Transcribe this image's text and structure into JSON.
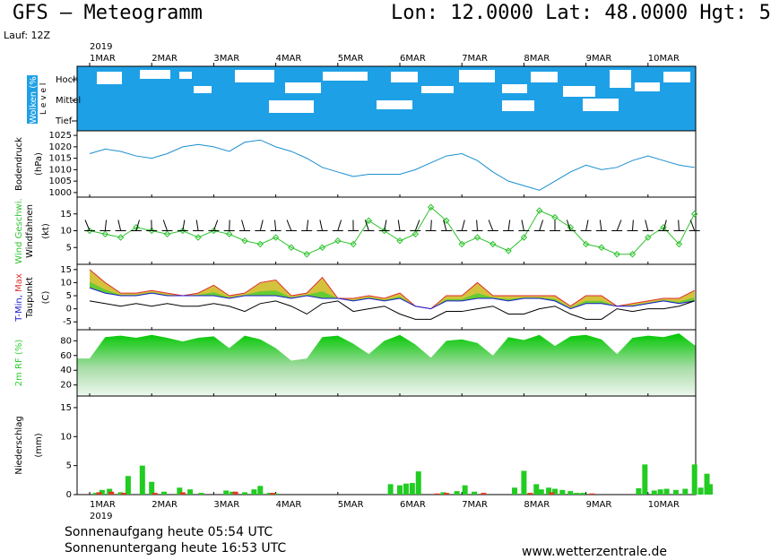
{
  "header": {
    "title": "GFS – Meteogramm",
    "coords": "Lon: 12.0000  Lat: 48.0000  Hgt: 5",
    "run": "Lauf: 12Z"
  },
  "footer": {
    "sunrise": "Sonnenaufgang heute 05:54 UTC",
    "sunset": "Sonnenuntergang heute 16:53 UTC",
    "site": "www.wetterzentrale.de"
  },
  "colors": {
    "cloud": "#1ea0e6",
    "pressure": "#1a8fd0",
    "wind": "#2ec42e",
    "tmax": "#e03030",
    "tmin": "#1a1ad0",
    "humidity": "#2fcf2f",
    "precip_green": "#22cc22",
    "precip_red": "#e03a20",
    "warm_band": "#e8c040"
  },
  "chart_data": [
    {
      "type": "area",
      "panel": "clouds",
      "label_side": "Wolken (%)",
      "label_levels": "L e v e l",
      "levels": [
        "Hoch",
        "Mittel",
        "Tief"
      ],
      "x_labels": [
        "1MAR",
        "2MAR",
        "3MAR",
        "4MAR",
        "5MAR",
        "6MAR",
        "7MAR",
        "8MAR",
        "9MAR",
        "10MAR"
      ],
      "year_label": "2019"
    },
    {
      "type": "line",
      "panel": "pressure",
      "ylabel": "Bodendruck",
      "unit": "(hPa)",
      "yticks": [
        1000,
        1005,
        1010,
        1015,
        1020,
        1025
      ],
      "ylim": [
        998,
        1027
      ],
      "x_days": [
        0,
        0.25,
        0.5,
        0.75,
        1,
        1.25,
        1.5,
        1.75,
        2,
        2.25,
        2.5,
        2.75,
        3,
        3.25,
        3.5,
        3.75,
        4,
        4.25,
        4.5,
        4.75,
        5,
        5.25,
        5.5,
        5.75,
        6,
        6.25,
        6.5,
        6.75,
        7,
        7.25,
        7.5,
        7.75,
        8,
        8.25,
        8.5,
        8.75,
        9,
        9.25,
        9.5,
        9.75
      ],
      "values": [
        1017,
        1019,
        1018,
        1016,
        1015,
        1017,
        1020,
        1021,
        1020,
        1018,
        1022,
        1023,
        1020,
        1018,
        1015,
        1011,
        1009,
        1007,
        1008,
        1008,
        1008,
        1010,
        1013,
        1016,
        1017,
        1014,
        1009,
        1005,
        1003,
        1001,
        1005,
        1009,
        1012,
        1010,
        1011,
        1014,
        1016,
        1014,
        1012,
        1011
      ]
    },
    {
      "type": "line",
      "panel": "wind",
      "ylabel": "Wind Geschwi.",
      "ylabel2": "Windfahnen",
      "unit": "(kt)",
      "yticks": [
        5,
        10,
        15
      ],
      "ylim": [
        0,
        20
      ],
      "x_days": [
        0,
        0.25,
        0.5,
        0.75,
        1,
        1.25,
        1.5,
        1.75,
        2,
        2.25,
        2.5,
        2.75,
        3,
        3.25,
        3.5,
        3.75,
        4,
        4.25,
        4.5,
        4.75,
        5,
        5.25,
        5.5,
        5.75,
        6,
        6.25,
        6.5,
        6.75,
        7,
        7.25,
        7.5,
        7.75,
        8,
        8.25,
        8.5,
        8.75,
        9,
        9.25,
        9.5,
        9.75
      ],
      "values": [
        10,
        9,
        8,
        11,
        10,
        9,
        10,
        8,
        10,
        9,
        7,
        6,
        8,
        5,
        3,
        5,
        7,
        6,
        13,
        10,
        7,
        9,
        17,
        13,
        6,
        8,
        6,
        4,
        8,
        16,
        14,
        11,
        6,
        5,
        3,
        3,
        8,
        11,
        6,
        15
      ]
    },
    {
      "type": "area",
      "panel": "temperature",
      "ylabel_parts": [
        "T-Min,",
        "Max"
      ],
      "ylabel2": "Taupunkt",
      "unit": "(C)",
      "yticks": [
        -5,
        0,
        5,
        10,
        15
      ],
      "ylim": [
        -8,
        17
      ],
      "x_days": [
        0,
        0.25,
        0.5,
        0.75,
        1,
        1.25,
        1.5,
        1.75,
        2,
        2.25,
        2.5,
        2.75,
        3,
        3.25,
        3.5,
        3.75,
        4,
        4.25,
        4.5,
        4.75,
        5,
        5.25,
        5.5,
        5.75,
        6,
        6.25,
        6.5,
        6.75,
        7,
        7.25,
        7.5,
        7.75,
        8,
        8.25,
        8.5,
        8.75,
        9,
        9.25,
        9.5,
        9.75
      ],
      "tmax": [
        15,
        10,
        6,
        6,
        7,
        6,
        5,
        6,
        9,
        5,
        6,
        10,
        11,
        5,
        6,
        12,
        4,
        4,
        5,
        4,
        6,
        1,
        0,
        5,
        5,
        10,
        5,
        5,
        5,
        5,
        5,
        1,
        5,
        5,
        1,
        2,
        3,
        4,
        4,
        7
      ],
      "tmin": [
        8,
        6,
        5,
        5,
        6,
        5,
        5,
        5,
        5,
        4,
        5,
        5,
        5,
        4,
        5,
        4,
        4,
        3,
        4,
        3,
        4,
        1,
        0,
        3,
        3,
        4,
        4,
        3,
        4,
        4,
        3,
        0,
        2,
        2,
        1,
        1,
        2,
        3,
        2,
        3
      ],
      "dewpoint": [
        3,
        2,
        1,
        2,
        1,
        2,
        1,
        1,
        2,
        1,
        -1,
        2,
        3,
        1,
        -2,
        2,
        3,
        -1,
        0,
        1,
        -2,
        -4,
        -4,
        -1,
        -1,
        0,
        1,
        -2,
        -2,
        0,
        1,
        -2,
        -4,
        -4,
        0,
        -1,
        0,
        0,
        1,
        3
      ]
    },
    {
      "type": "area",
      "panel": "humidity",
      "ylabel": "2m RF (%)",
      "yticks": [
        20,
        40,
        60,
        80
      ],
      "ylim": [
        5,
        95
      ],
      "x_days": [
        0,
        0.25,
        0.5,
        0.75,
        1,
        1.25,
        1.5,
        1.75,
        2,
        2.25,
        2.5,
        2.75,
        3,
        3.25,
        3.5,
        3.75,
        4,
        4.25,
        4.5,
        4.75,
        5,
        5.25,
        5.5,
        5.75,
        6,
        6.25,
        6.5,
        6.75,
        7,
        7.25,
        7.5,
        7.75,
        8,
        8.25,
        8.5,
        8.75,
        9,
        9.25,
        9.5,
        9.75
      ],
      "values": [
        56,
        85,
        87,
        84,
        88,
        84,
        79,
        84,
        86,
        70,
        87,
        82,
        70,
        53,
        56,
        85,
        87,
        76,
        62,
        80,
        88,
        75,
        57,
        80,
        82,
        77,
        60,
        85,
        81,
        88,
        73,
        86,
        88,
        82,
        62,
        84,
        87,
        85,
        90,
        74
      ]
    },
    {
      "type": "bar",
      "panel": "precipitation",
      "ylabel": "Niederschlag",
      "unit": "(mm)",
      "yticks": [
        0,
        5,
        10,
        15
      ],
      "ylim": [
        0,
        17
      ],
      "x_days": [
        0.1,
        0.2,
        0.32,
        0.5,
        0.62,
        0.85,
        1.0,
        1.2,
        1.45,
        1.62,
        1.8,
        2.2,
        2.3,
        2.5,
        2.65,
        2.75,
        2.9,
        3.0,
        4.85,
        5.0,
        5.1,
        5.2,
        5.3,
        5.7,
        5.92,
        6.05,
        6.2,
        6.85,
        7.0,
        7.2,
        7.28,
        7.4,
        7.5,
        7.62,
        7.75,
        7.85,
        7.95,
        8.85,
        8.95,
        9.1,
        9.2,
        9.3,
        9.45,
        9.6,
        9.75,
        9.85,
        9.95,
        10.0
      ],
      "values": [
        0.3,
        0.8,
        1.0,
        0.4,
        3.2,
        5.0,
        2.2,
        0.5,
        1.2,
        0.9,
        0.3,
        0.7,
        0.5,
        0.4,
        0.9,
        1.5,
        0.3,
        0.2,
        1.8,
        1.6,
        1.9,
        2.0,
        4.0,
        0.4,
        0.6,
        1.6,
        0.5,
        1.2,
        4.1,
        1.8,
        0.9,
        1.2,
        1.0,
        0.8,
        0.6,
        0.3,
        0.3,
        1.1,
        5.2,
        0.7,
        0.9,
        1.0,
        0.8,
        1.0,
        5.2,
        1.2,
        3.6,
        1.8
      ],
      "red_x_days": [
        0.15,
        0.35,
        0.55,
        1.05,
        1.5,
        2.35,
        2.95,
        5.6,
        5.75,
        6.35,
        7.1,
        7.45,
        8.1
      ],
      "red_values": [
        0.4,
        0.5,
        0.3,
        0.3,
        0.4,
        0.5,
        0.3,
        0.2,
        0.3,
        0.3,
        0.3,
        0.4,
        0.2
      ]
    }
  ]
}
